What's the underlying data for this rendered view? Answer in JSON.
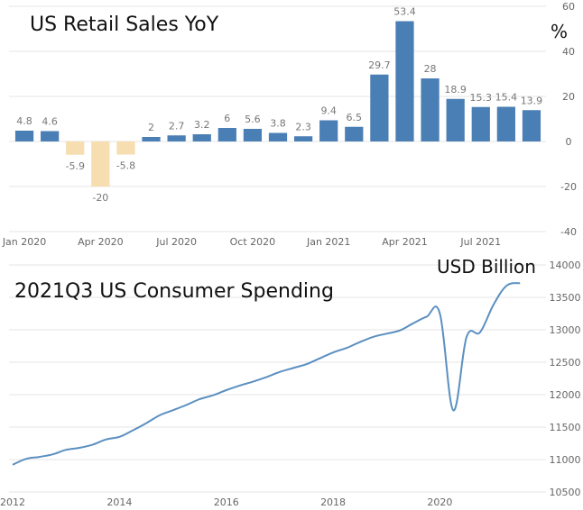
{
  "chart_data": [
    {
      "type": "bar",
      "title": "US Retail Sales YoY",
      "unit_label": "%",
      "ylim": [
        -40,
        60
      ],
      "yticks": [
        60,
        40,
        20,
        0,
        -20,
        -40
      ],
      "grid": true,
      "x_tick_labels": [
        "Jan 2020",
        "Apr 2020",
        "Jul 2020",
        "Oct 2020",
        "Jan 2021",
        "Apr 2021",
        "Jul 2021"
      ],
      "categories": [
        "Jan 2020",
        "Feb 2020",
        "Mar 2020",
        "Apr 2020",
        "May 2020",
        "Jun 2020",
        "Jul 2020",
        "Aug 2020",
        "Sep 2020",
        "Oct 2020",
        "Nov 2020",
        "Dec 2020",
        "Jan 2021",
        "Feb 2021",
        "Mar 2021",
        "Apr 2021",
        "May 2021",
        "Jun 2021",
        "Jul 2021",
        "Aug 2021",
        "Sep 2021"
      ],
      "values": [
        4.8,
        4.6,
        -5.9,
        -20,
        -5.8,
        2,
        2.7,
        3.2,
        6,
        5.6,
        3.8,
        2.3,
        9.4,
        6.5,
        29.7,
        53.4,
        28,
        18.9,
        15.3,
        15.4,
        13.9
      ],
      "data_labels": [
        "4.8",
        "4.6",
        "-5.9",
        "-20",
        "-5.8",
        "2",
        "2.7",
        "3.2",
        "6",
        "5.6",
        "3.8",
        "2.3",
        "9.4",
        "6.5",
        "29.7",
        "53.4",
        "28",
        "18.9",
        "15.3",
        "15.4",
        "13.9"
      ],
      "colors": {
        "positive": "#4a7fb5",
        "negative": "#f6deb0",
        "grid": "#e6e6e6",
        "label": "#777777"
      }
    },
    {
      "type": "line",
      "title": "2021Q3 US Consumer Spending",
      "unit_label": "USD Billion",
      "ylim": [
        10500,
        14000
      ],
      "yticks": [
        14000,
        13500,
        13000,
        12500,
        12000,
        11500,
        11000,
        10500
      ],
      "xlim": [
        2012,
        2021.75
      ],
      "xticks": [
        "2012",
        "2014",
        "2016",
        "2018",
        "2020"
      ],
      "grid": true,
      "x": [
        2012.0,
        2012.25,
        2012.5,
        2012.75,
        2013.0,
        2013.25,
        2013.5,
        2013.75,
        2014.0,
        2014.25,
        2014.5,
        2014.75,
        2015.0,
        2015.25,
        2015.5,
        2015.75,
        2016.0,
        2016.25,
        2016.5,
        2016.75,
        2017.0,
        2017.25,
        2017.5,
        2017.75,
        2018.0,
        2018.25,
        2018.5,
        2018.75,
        2019.0,
        2019.25,
        2019.5,
        2019.75,
        2020.0,
        2020.25,
        2020.5,
        2020.75,
        2021.0,
        2021.25,
        2021.5
      ],
      "y": [
        10920,
        11010,
        11040,
        11080,
        11150,
        11180,
        11230,
        11310,
        11350,
        11450,
        11560,
        11680,
        11760,
        11840,
        11930,
        11990,
        12070,
        12140,
        12200,
        12270,
        12350,
        12410,
        12470,
        12560,
        12650,
        12720,
        12810,
        12890,
        12940,
        12990,
        13100,
        13200,
        13250,
        11760,
        12890,
        12960,
        13380,
        13680,
        13720
      ],
      "colors": {
        "line": "#5b8fc0",
        "grid": "#e6e6e6"
      }
    }
  ]
}
